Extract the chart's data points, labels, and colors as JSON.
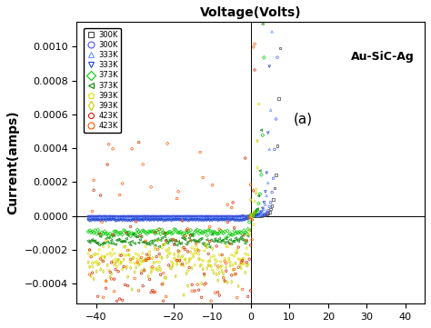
{
  "title": "Voltage(Volts)",
  "ylabel": "Current(amps)",
  "annotation": "Au-SiC-Ag",
  "sublabel": "(a)",
  "xlim": [
    -45,
    45
  ],
  "ylim": [
    -0.00052,
    0.00115
  ],
  "xticks": [
    -40,
    -20,
    -10,
    0,
    10,
    20,
    30,
    40
  ],
  "yticks": [
    -0.0004,
    -0.0002,
    0.0,
    0.0002,
    0.0004,
    0.0006,
    0.0008,
    0.001
  ],
  "background_color": "#ffffff",
  "series": [
    {
      "label": "300K",
      "color": "#444444",
      "marker": "s",
      "I0": 3e-08,
      "n": 28.0,
      "Irev": 2e-06
    },
    {
      "label": "300K",
      "color": "#4455ff",
      "marker": "o",
      "I0": 5e-08,
      "n": 27.0,
      "Irev": 4e-06
    },
    {
      "label": "333K",
      "color": "#6699ff",
      "marker": "^",
      "I0": 1.5e-07,
      "n": 24.0,
      "Irev": 1.5e-05
    },
    {
      "label": "333K",
      "color": "#2244cc",
      "marker": "v",
      "I0": 2.5e-07,
      "n": 23.0,
      "Irev": 2.5e-05
    },
    {
      "label": "373K",
      "color": "#00cc00",
      "marker": "D",
      "I0": 1.2e-06,
      "n": 20.0,
      "Irev": 0.0001
    },
    {
      "label": "373K",
      "color": "#008800",
      "marker": "<",
      "I0": 2e-06,
      "n": 19.0,
      "Irev": 0.00015
    },
    {
      "label": "393K",
      "color": "#dddd00",
      "marker": "p",
      "I0": 6e-06,
      "n": 17.0,
      "Irev": 0.00025
    },
    {
      "label": "393K",
      "color": "#cccc00",
      "marker": "d",
      "I0": 1e-05,
      "n": 16.5,
      "Irev": 0.0003
    },
    {
      "label": "423K",
      "color": "#cc2200",
      "marker": "8",
      "I0": 5e-05,
      "n": 14.0,
      "Irev": 0.0004
    },
    {
      "label": "423K",
      "color": "#ff5500",
      "marker": "o",
      "I0": 8e-05,
      "n": 13.5,
      "Irev": 0.00045
    }
  ]
}
